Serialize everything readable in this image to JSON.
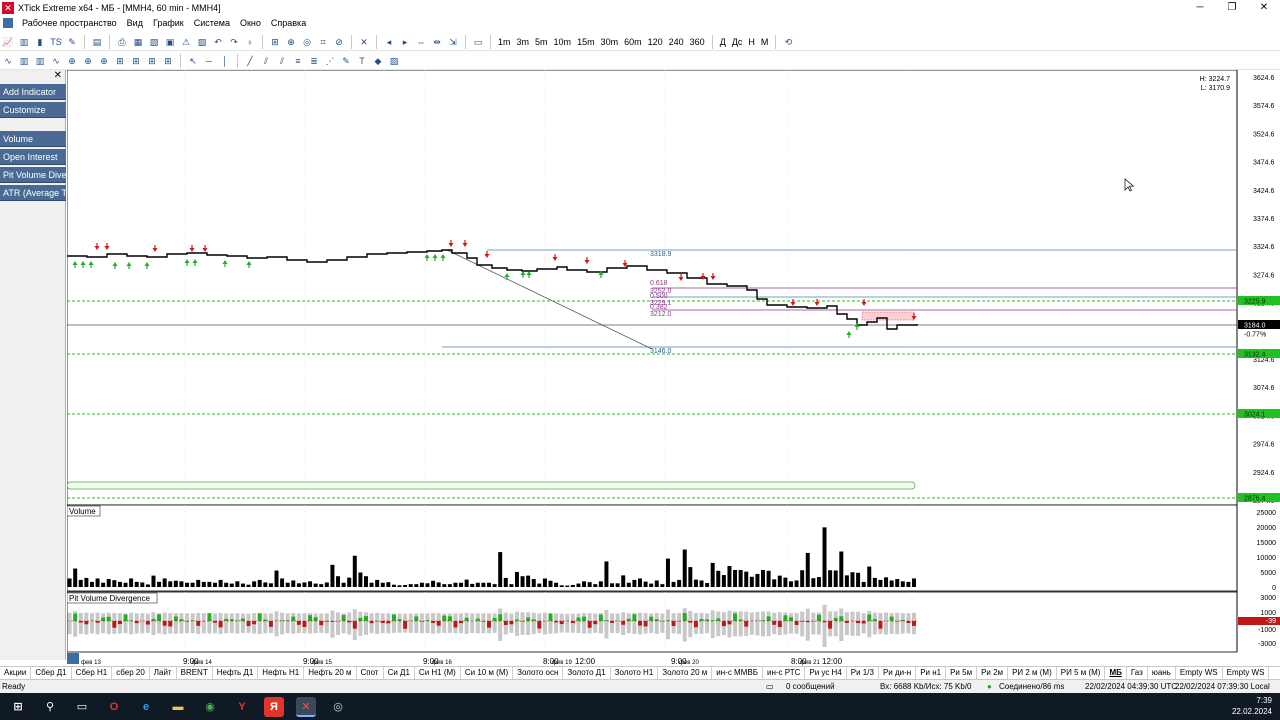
{
  "window": {
    "title": "XTick Extreme x64 - МБ - [MMH4, 60 min - MMH4]",
    "controls": [
      "─",
      "❐",
      "✕"
    ]
  },
  "menubar": {
    "items": [
      "Рабочее пространство",
      "Вид",
      "График",
      "Система",
      "Окно",
      "Справка"
    ],
    "mdi_controls": [
      "─",
      "❐",
      "✕"
    ]
  },
  "toolbar1": {
    "timeframes": [
      "1m",
      "3m",
      "5m",
      "10m",
      "15m",
      "30m",
      "60m",
      "120",
      "240",
      "360"
    ],
    "periods": [
      "Д",
      "Дс",
      "Н",
      "М"
    ]
  },
  "sidebar": {
    "items": [
      "Add Indicator",
      "Customize",
      "Volume",
      "Open Interest",
      "Pit Volume Divergence",
      "ATR (Average True Range)"
    ]
  },
  "chart": {
    "hl_info": [
      "H: 3224.7",
      "L: 3170.9"
    ],
    "price_axis": [
      "3624.6",
      "3574.6",
      "3524.6",
      "3474.6",
      "3424.6",
      "3374.6",
      "3324.6",
      "3274.6",
      "3224.6",
      "3174.6",
      "3124.6",
      "3074.6",
      "3024.6",
      "2974.6",
      "2924.6",
      "2874.6"
    ],
    "price_marks": [
      {
        "label": "3225.9",
        "color": "#22c022"
      },
      {
        "label": "3184.0",
        "color": "#000000"
      },
      {
        "label": "-0.77%",
        "color": "#ffffff"
      },
      {
        "label": "3132.4",
        "color": "#22c022"
      },
      {
        "label": "3024.1",
        "color": "#22c022"
      },
      {
        "label": "2876.4",
        "color": "#22c022"
      }
    ],
    "fib_labels": [
      "3318.9",
      "0.618",
      "3252.0",
      "0.500",
      "3229.1",
      "0.382",
      "3212.0",
      "3146.0"
    ],
    "volume_title": "Volume",
    "volume_axis": [
      "25000",
      "20000",
      "15000",
      "10000",
      "5000",
      "0"
    ],
    "pvd_title": "Pit Volume Divergence",
    "pvd_axis": [
      "3000",
      "1000",
      "-39",
      "-1000",
      "-3000"
    ],
    "time_labels": [
      "фев 13",
      "9:00",
      "фев 14",
      "9:00",
      "фев 15",
      "9:00",
      "фев 16",
      "8:00",
      "фев 19",
      "12:00",
      "9:00",
      "фев 20",
      "8:00",
      "фев 21",
      "12:00"
    ]
  },
  "chart_data": {
    "type": "bar",
    "title": "",
    "series": [
      {
        "name": "Volume",
        "values": [
          3000,
          6500,
          2500,
          3200,
          1800,
          3000,
          1500,
          2800,
          2400,
          1800,
          1500,
          3000,
          1800,
          1600,
          900,
          4000,
          1800,
          3000,
          2000,
          2200,
          2000,
          1500,
          1500,
          2500,
          1800,
          1800,
          1500,
          2500,
          1500,
          1200,
          2000,
          1200,
          800,
          2000,
          2500,
          1600,
          1300,
          5800,
          3000,
          1500,
          2300,
          1300,
          1600,
          2000,
          1200,
          1000,
          1600,
          7800,
          3800,
          1500,
          3300,
          11000,
          5100,
          3800,
          1500,
          2500,
          1500,
          1700,
          800,
          600,
          700,
          1000,
          1000,
          1500,
          1300,
          2200,
          1600,
          1000,
          1000,
          1500,
          1500,
          2600,
          1100,
          1500,
          1500,
          1500,
          1000,
          12300,
          3200,
          1000,
          5300,
          3800,
          4000,
          2800,
          1200,
          3000,
          2200,
          1500,
          600,
          500,
          700,
          1200,
          2000,
          1700,
          1000,
          2000,
          9000,
          1300,
          1300,
          4100,
          1500,
          2500,
          3000,
          1900,
          1200,
          2300,
          1000,
          10000,
          1800,
          2500,
          13200,
          7000,
          2600,
          2300,
          1400,
          8500,
          5700,
          4200,
          7400,
          6000,
          6000,
          5400,
          3600,
          4600,
          6000,
          5700,
          2700,
          4000,
          3300,
          2000,
          2300,
          5900,
          12000,
          3100,
          3500,
          21000,
          5900,
          5800,
          12500,
          4100,
          5200,
          5000,
          1800,
          7200,
          3200,
          2500,
          3400,
          2300,
          2800,
          2000,
          1800,
          3000
        ]
      }
    ],
    "ylim": [
      0,
      25000
    ]
  },
  "tabs": {
    "items": [
      "Акции",
      "Сбер Д1",
      "Сбер Н1",
      "сбер 20",
      "Лайт",
      "BRENT",
      "Нефть Д1",
      "Нефть Н1",
      "Нефть 20 м",
      "Спот",
      "Си Д1",
      "Си Н1 (М)",
      "Си 10 м (М)",
      "Золото осн",
      "Золото Д1",
      "Золото Н1",
      "Золото 20 м",
      "ин-с ММВБ",
      "ин-с РТС",
      "Ри ус Н4",
      "Ри 1/3",
      "Ри ди-н",
      "Ри н1",
      "Ри 5м",
      "Ри 2м",
      "РИ 2 м (М)",
      "РИ 5 м (М)",
      "МБ",
      "Газ",
      "юань",
      "Empty WS",
      "Empty WS"
    ],
    "active": "МБ"
  },
  "status": {
    "ready": "Ready",
    "messages": "0 сообщений",
    "traffic": "Вх: 6688 Kb/Исх: 75 Kb/0",
    "connection": "Соединено/86 ms",
    "time_utc": "22/02/2024 04:39:30 UTC",
    "time_local": "22/02/2024 07:39:30 Local"
  },
  "taskbar": {
    "clock_time": "7:39",
    "clock_date": "22.02.2024"
  }
}
